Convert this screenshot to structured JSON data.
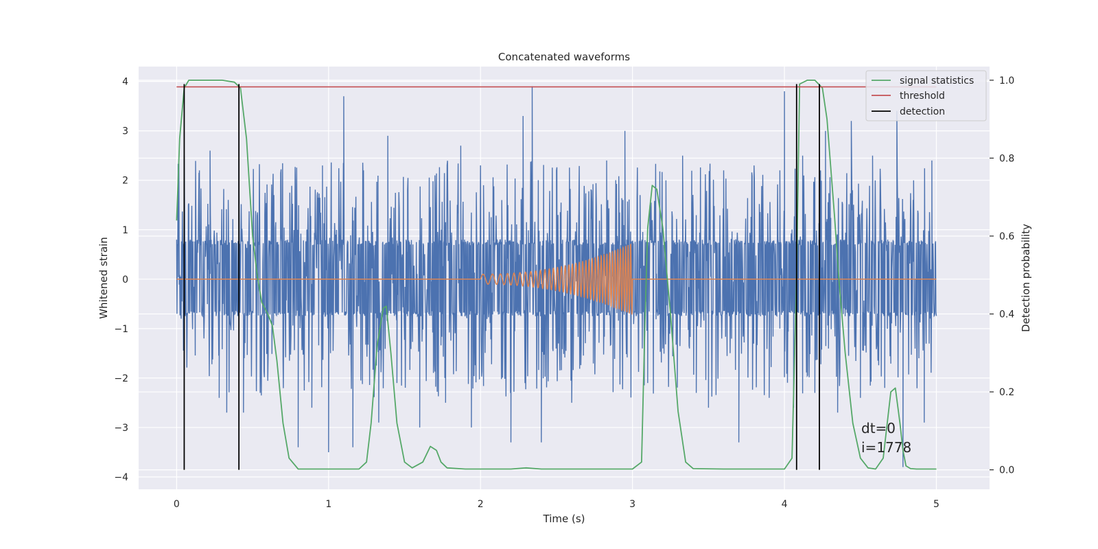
{
  "chart_data": {
    "type": "line",
    "title": "Concatenated waveforms",
    "xlabel": "Time (s)",
    "ylabel": "Whitened strain",
    "ylabel_right": "Detection probability",
    "xlim": [
      -0.25,
      5.35
    ],
    "ylim": [
      -4.25,
      4.3
    ],
    "ylim_right": [
      -0.05,
      1.035
    ],
    "xticks": [
      0,
      1,
      2,
      3,
      4,
      5
    ],
    "yticks": [
      -4,
      -3,
      -2,
      -1,
      0,
      1,
      2,
      3,
      4
    ],
    "yticks_right": [
      0.0,
      0.2,
      0.4,
      0.6,
      0.8,
      1.0
    ],
    "ytick_labels": [
      "−4",
      "−3",
      "−2",
      "−1",
      "0",
      "1",
      "2",
      "3",
      "4"
    ],
    "yticks_right_labels": [
      "0.0",
      "0.2",
      "0.4",
      "0.6",
      "0.8",
      "1.0"
    ],
    "grid": true,
    "legend_position": "top-right",
    "colors": {
      "strain": "#4c72b0",
      "injected": "#dd8452",
      "signal_statistics": "#55a868",
      "threshold": "#c44e52",
      "detection": "#000000",
      "plot_bg": "#eaeaf2",
      "grid": "#ffffff"
    },
    "series": [
      {
        "name": "signal statistics",
        "axis": "right",
        "x": [
          0.0,
          0.02,
          0.05,
          0.08,
          0.12,
          0.2,
          0.3,
          0.38,
          0.42,
          0.46,
          0.5,
          0.53,
          0.56,
          0.6,
          0.63,
          0.66,
          0.7,
          0.74,
          0.8,
          1.0,
          1.2,
          1.25,
          1.28,
          1.32,
          1.36,
          1.38,
          1.41,
          1.45,
          1.5,
          1.55,
          1.62,
          1.67,
          1.71,
          1.74,
          1.78,
          1.9,
          2.2,
          2.3,
          2.4,
          2.8,
          3.0,
          3.06,
          3.08,
          3.1,
          3.13,
          3.16,
          3.2,
          3.25,
          3.3,
          3.35,
          3.4,
          3.6,
          3.8,
          4.0,
          4.05,
          4.08,
          4.1,
          4.15,
          4.2,
          4.25,
          4.28,
          4.3,
          4.33,
          4.36,
          4.4,
          4.45,
          4.5,
          4.55,
          4.6,
          4.65,
          4.7,
          4.73,
          4.76,
          4.78,
          4.8,
          4.83,
          4.87,
          4.92,
          5.0
        ],
        "y": [
          0.64,
          0.85,
          0.98,
          1.0,
          1.0,
          1.0,
          1.0,
          0.995,
          0.98,
          0.85,
          0.6,
          0.5,
          0.43,
          0.4,
          0.37,
          0.28,
          0.12,
          0.03,
          0.002,
          0.002,
          0.002,
          0.02,
          0.12,
          0.32,
          0.415,
          0.42,
          0.3,
          0.12,
          0.02,
          0.005,
          0.02,
          0.06,
          0.05,
          0.02,
          0.005,
          0.002,
          0.002,
          0.005,
          0.002,
          0.002,
          0.002,
          0.02,
          0.35,
          0.62,
          0.73,
          0.72,
          0.62,
          0.4,
          0.15,
          0.02,
          0.003,
          0.002,
          0.002,
          0.002,
          0.03,
          0.5,
          0.99,
          1.0,
          1.0,
          0.98,
          0.9,
          0.8,
          0.65,
          0.48,
          0.3,
          0.12,
          0.03,
          0.005,
          0.002,
          0.03,
          0.2,
          0.21,
          0.12,
          0.05,
          0.01,
          0.003,
          0.002,
          0.002,
          0.002
        ]
      },
      {
        "name": "threshold",
        "axis": "right",
        "x": [
          0.0,
          5.0
        ],
        "y": [
          0.983,
          0.983
        ]
      },
      {
        "name": "detection",
        "axis": "right",
        "x": [
          0.05,
          0.41,
          4.08,
          4.23
        ],
        "y_range": [
          0.0,
          0.99
        ]
      }
    ],
    "strain": {
      "x_range": [
        0.0,
        5.0
      ],
      "envelope": [
        -0.75,
        0.8
      ],
      "spikes": [
        {
          "x": 0.05,
          "y": 2.5
        },
        {
          "x": 0.15,
          "y": 2.2
        },
        {
          "x": 0.22,
          "y": 2.6
        },
        {
          "x": 0.28,
          "y": -2.4
        },
        {
          "x": 0.33,
          "y": -2.7
        },
        {
          "x": 0.41,
          "y": 2.4
        },
        {
          "x": 0.44,
          "y": -2.7
        },
        {
          "x": 0.55,
          "y": -2.3
        },
        {
          "x": 0.64,
          "y": 1.7
        },
        {
          "x": 0.8,
          "y": -3.4
        },
        {
          "x": 0.89,
          "y": -2.6
        },
        {
          "x": 0.96,
          "y": 2.3
        },
        {
          "x": 1.0,
          "y": -3.5
        },
        {
          "x": 1.1,
          "y": 3.7
        },
        {
          "x": 1.16,
          "y": -3.4
        },
        {
          "x": 1.23,
          "y": 2.2
        },
        {
          "x": 1.33,
          "y": -2.9
        },
        {
          "x": 1.39,
          "y": 2.9
        },
        {
          "x": 1.45,
          "y": -2.1
        },
        {
          "x": 1.52,
          "y": 1.8
        },
        {
          "x": 1.6,
          "y": -3.0
        },
        {
          "x": 1.7,
          "y": 2.1
        },
        {
          "x": 1.77,
          "y": -2.5
        },
        {
          "x": 1.87,
          "y": 2.7
        },
        {
          "x": 1.94,
          "y": -3.0
        },
        {
          "x": 2.02,
          "y": 1.9
        },
        {
          "x": 2.14,
          "y": 1.6
        },
        {
          "x": 2.2,
          "y": -3.3
        },
        {
          "x": 2.28,
          "y": 3.3
        },
        {
          "x": 2.34,
          "y": 3.9
        },
        {
          "x": 2.4,
          "y": -3.3
        },
        {
          "x": 2.5,
          "y": 2.2
        },
        {
          "x": 2.6,
          "y": -2.5
        },
        {
          "x": 2.73,
          "y": 1.8
        },
        {
          "x": 2.83,
          "y": 2.4
        },
        {
          "x": 2.95,
          "y": 3.0
        },
        {
          "x": 3.05,
          "y": 1.7
        },
        {
          "x": 3.1,
          "y": -2.1
        },
        {
          "x": 3.22,
          "y": 2.0
        },
        {
          "x": 3.33,
          "y": 2.5
        },
        {
          "x": 3.42,
          "y": -2.3
        },
        {
          "x": 3.5,
          "y": -2.6
        },
        {
          "x": 3.6,
          "y": 2.2
        },
        {
          "x": 3.7,
          "y": -3.3
        },
        {
          "x": 3.8,
          "y": 2.3
        },
        {
          "x": 3.9,
          "y": -2.4
        },
        {
          "x": 3.97,
          "y": 2.2
        },
        {
          "x": 4.0,
          "y": 3.8
        },
        {
          "x": 4.06,
          "y": -2.6
        },
        {
          "x": 4.12,
          "y": 2.5
        },
        {
          "x": 4.2,
          "y": -2.3
        },
        {
          "x": 4.27,
          "y": 3.0
        },
        {
          "x": 4.35,
          "y": -2.7
        },
        {
          "x": 4.44,
          "y": 3.2
        },
        {
          "x": 4.5,
          "y": -2.4
        },
        {
          "x": 4.58,
          "y": 2.5
        },
        {
          "x": 4.66,
          "y": -2.2
        },
        {
          "x": 4.74,
          "y": 3.4
        },
        {
          "x": 4.78,
          "y": -3.8
        },
        {
          "x": 4.85,
          "y": 2.0
        },
        {
          "x": 4.92,
          "y": -2.9
        },
        {
          "x": 4.97,
          "y": 2.4
        }
      ]
    },
    "injected_chirp": {
      "x_range": [
        2.0,
        3.0
      ],
      "amplitude_range": [
        0.1,
        0.72
      ]
    },
    "annotations": {
      "dt": "dt=0",
      "i": "i=1778"
    }
  }
}
